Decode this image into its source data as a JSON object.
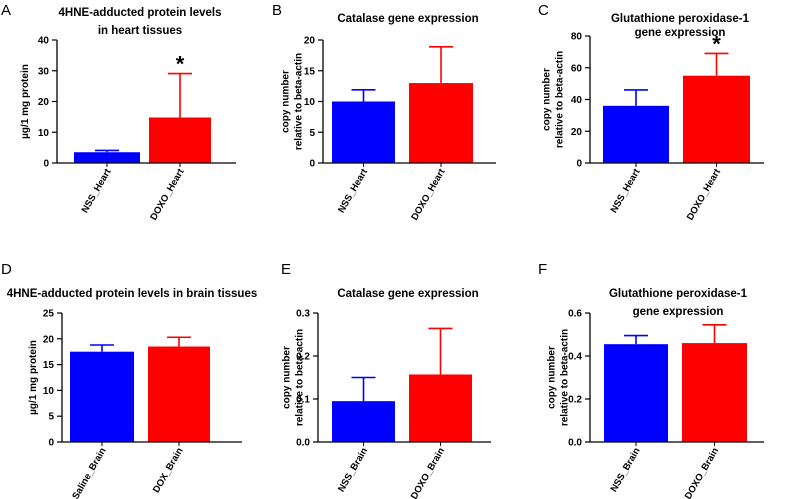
{
  "figure": {
    "panels": [
      "A",
      "B",
      "C",
      "D",
      "E",
      "F"
    ]
  },
  "colors": {
    "blue": "#0000ff",
    "red": "#ff0000",
    "axis": "#000000"
  },
  "chart_data": [
    {
      "panel": "A",
      "type": "bar",
      "title": "4HNE-adducted protein levels in heart tissues",
      "title_lines": [
        "4HNE-adducted protein levels",
        "in heart tissues"
      ],
      "ylabel_lines": [
        "µg/1 mg protein"
      ],
      "categories": [
        "NSS_Heart",
        "DOXO_Heart"
      ],
      "values": [
        3.5,
        14.8
      ],
      "errors": [
        0.6,
        14.3
      ],
      "colors": [
        "#0000ff",
        "#ff0000"
      ],
      "ylim": [
        0,
        40
      ],
      "yticks": [
        0,
        10,
        20,
        30,
        40
      ],
      "ytick_labels": [
        "0",
        "10",
        "20",
        "30",
        "40"
      ],
      "significance": [
        "",
        "*"
      ]
    },
    {
      "panel": "B",
      "type": "bar",
      "title": "Catalase gene expression",
      "title_lines": [
        "Catalase gene expression"
      ],
      "ylabel_lines": [
        "copy number",
        "relative to beta-actin"
      ],
      "categories": [
        "NSS_Heart",
        "DOXO_Heart"
      ],
      "values": [
        10,
        13
      ],
      "errors": [
        1.9,
        5.9
      ],
      "colors": [
        "#0000ff",
        "#ff0000"
      ],
      "ylim": [
        0,
        20
      ],
      "yticks": [
        0,
        5,
        10,
        15,
        20
      ],
      "ytick_labels": [
        "0",
        "5",
        "10",
        "15",
        "20"
      ],
      "significance": [
        "",
        ""
      ]
    },
    {
      "panel": "C",
      "type": "bar",
      "title": "Glutathione peroxidase-1 gene expression",
      "title_lines": [
        "Glutathione peroxidase-1",
        "gene expression"
      ],
      "ylabel_lines": [
        "copy number",
        "relative to beta-actin"
      ],
      "categories": [
        "NSS_Heart",
        "DOXO_Heart"
      ],
      "values": [
        36,
        55
      ],
      "errors": [
        10,
        14
      ],
      "colors": [
        "#0000ff",
        "#ff0000"
      ],
      "ylim": [
        0,
        80
      ],
      "yticks": [
        0,
        20,
        40,
        60,
        80
      ],
      "ytick_labels": [
        "0",
        "20",
        "40",
        "60",
        "80"
      ],
      "significance": [
        "",
        "*"
      ]
    },
    {
      "panel": "D",
      "type": "bar",
      "title": "4HNE-adducted protein levels in brain tissues",
      "title_lines": [
        "4HNE-adducted protein levels in brain tissues"
      ],
      "ylabel_lines": [
        "µg/1 mg protein"
      ],
      "categories": [
        "Saline_Brain",
        "DOX_Brain"
      ],
      "values": [
        17.5,
        18.5
      ],
      "errors": [
        1.3,
        1.8
      ],
      "colors": [
        "#0000ff",
        "#ff0000"
      ],
      "ylim": [
        0,
        25
      ],
      "yticks": [
        0,
        5,
        10,
        15,
        20,
        25
      ],
      "ytick_labels": [
        "0",
        "5",
        "10",
        "15",
        "20",
        "25"
      ],
      "significance": [
        "",
        ""
      ]
    },
    {
      "panel": "E",
      "type": "bar",
      "title": "Catalase gene expression",
      "title_lines": [
        "Catalase gene expression"
      ],
      "ylabel_lines": [
        "copy number",
        "relative to beta-actin"
      ],
      "categories": [
        "NSS_Brain",
        "DOXO_Brain"
      ],
      "values": [
        0.095,
        0.157
      ],
      "errors": [
        0.055,
        0.107
      ],
      "colors": [
        "#0000ff",
        "#ff0000"
      ],
      "ylim": [
        0,
        0.3
      ],
      "yticks": [
        0,
        0.1,
        0.2,
        0.3
      ],
      "ytick_labels": [
        "0.0",
        "0.1",
        "0.2",
        "0.3"
      ],
      "significance": [
        "",
        ""
      ]
    },
    {
      "panel": "F",
      "type": "bar",
      "title": "Glutathione peroxidase-1 gene expression",
      "title_lines": [
        "Glutathione peroxidase-1",
        "gene expression"
      ],
      "ylabel_lines": [
        "copy number",
        "relative to beta-actin"
      ],
      "categories": [
        "NSS_Brain",
        "DOXO_Brain"
      ],
      "values": [
        0.455,
        0.46
      ],
      "errors": [
        0.04,
        0.085
      ],
      "colors": [
        "#0000ff",
        "#ff0000"
      ],
      "ylim": [
        0,
        0.6
      ],
      "yticks": [
        0,
        0.2,
        0.4,
        0.6
      ],
      "ytick_labels": [
        "0.0",
        "0.2",
        "0.4",
        "0.6"
      ],
      "significance": [
        "",
        ""
      ]
    }
  ]
}
